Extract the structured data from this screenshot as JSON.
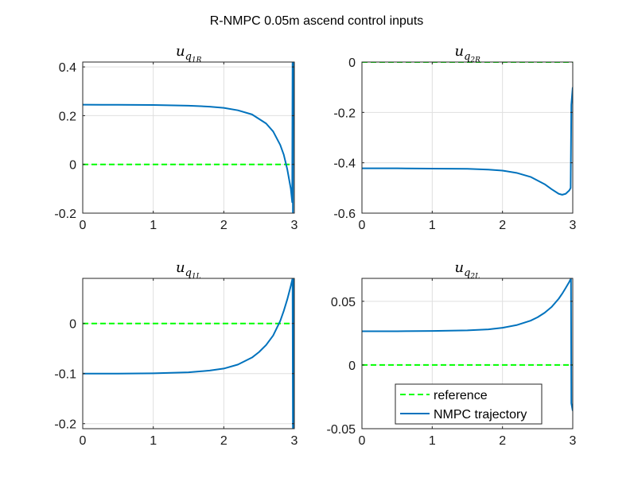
{
  "figure": {
    "title": "R-NMPC 0.05m ascend control inputs"
  },
  "colors": {
    "reference": "#00ff00",
    "trajectory": "#0072bd",
    "grid": "#dfdfdf",
    "axis": "#262626"
  },
  "legend": {
    "items": [
      "reference",
      "NMPC trajectory"
    ],
    "placement": "bottom-right of lower-right plot"
  },
  "chart_data": [
    {
      "type": "line",
      "title": {
        "base": "u",
        "sub": "q",
        "subsub": "1R"
      },
      "xlim": [
        0,
        3
      ],
      "ylim": [
        -0.2,
        0.42
      ],
      "xticks": [
        0,
        1,
        2,
        3
      ],
      "xtick_labels": [
        "0",
        "1",
        "2",
        "3"
      ],
      "yticks": [
        -0.2,
        0,
        0.2,
        0.4
      ],
      "ytick_labels": [
        "-0.2",
        "0",
        "0.2",
        "0.4"
      ],
      "grid": true,
      "series": [
        {
          "name": "reference",
          "style": "dashed",
          "x": [
            0,
            3
          ],
          "y": [
            0,
            0
          ]
        },
        {
          "name": "NMPC trajectory",
          "style": "solid",
          "x": [
            0,
            0.5,
            1.0,
            1.5,
            1.8,
            2.0,
            2.2,
            2.4,
            2.6,
            2.7,
            2.8,
            2.85,
            2.9,
            2.95,
            2.97,
            2.975,
            2.98,
            2.985,
            3.0
          ],
          "y": [
            0.245,
            0.2445,
            0.244,
            0.241,
            0.237,
            0.232,
            0.222,
            0.205,
            0.168,
            0.135,
            0.08,
            0.04,
            -0.02,
            -0.1,
            -0.155,
            0.42,
            -0.2,
            0.42,
            0.42
          ]
        }
      ]
    },
    {
      "type": "line",
      "title": {
        "base": "u",
        "sub": "q",
        "subsub": "2R"
      },
      "xlim": [
        0,
        3
      ],
      "ylim": [
        -0.6,
        0
      ],
      "xticks": [
        0,
        1,
        2,
        3
      ],
      "xtick_labels": [
        "0",
        "1",
        "2",
        "3"
      ],
      "yticks": [
        -0.6,
        -0.4,
        -0.2,
        0
      ],
      "ytick_labels": [
        "-0.6",
        "-0.4",
        "-0.2",
        "0"
      ],
      "grid": true,
      "series": [
        {
          "name": "reference",
          "style": "dashed",
          "x": [
            0,
            3
          ],
          "y": [
            0,
            0
          ]
        },
        {
          "name": "NMPC trajectory",
          "style": "solid",
          "x": [
            0,
            0.5,
            1.0,
            1.5,
            1.8,
            2.0,
            2.2,
            2.4,
            2.6,
            2.7,
            2.8,
            2.85,
            2.9,
            2.95,
            2.97,
            2.98,
            3.0
          ],
          "y": [
            -0.422,
            -0.422,
            -0.423,
            -0.424,
            -0.427,
            -0.431,
            -0.44,
            -0.456,
            -0.485,
            -0.505,
            -0.523,
            -0.527,
            -0.523,
            -0.51,
            -0.5,
            -0.17,
            -0.1
          ]
        }
      ]
    },
    {
      "type": "line",
      "title": {
        "base": "u",
        "sub": "q",
        "subsub": "1L"
      },
      "xlim": [
        0,
        3
      ],
      "ylim": [
        -0.21,
        0.09
      ],
      "xticks": [
        0,
        1,
        2,
        3
      ],
      "xtick_labels": [
        "0",
        "1",
        "2",
        "3"
      ],
      "yticks": [
        -0.2,
        -0.1,
        0
      ],
      "ytick_labels": [
        "-0.2",
        "-0.1",
        "0"
      ],
      "grid": true,
      "series": [
        {
          "name": "reference",
          "style": "dashed",
          "x": [
            0,
            3
          ],
          "y": [
            0,
            0
          ]
        },
        {
          "name": "NMPC trajectory",
          "style": "solid",
          "x": [
            0,
            0.5,
            1.0,
            1.5,
            1.8,
            2.0,
            2.2,
            2.4,
            2.5,
            2.6,
            2.7,
            2.8,
            2.85,
            2.9,
            2.95,
            2.975,
            2.98,
            2.985,
            3.0
          ],
          "y": [
            -0.1,
            -0.1,
            -0.0995,
            -0.0975,
            -0.094,
            -0.09,
            -0.082,
            -0.068,
            -0.057,
            -0.043,
            -0.024,
            0.005,
            0.025,
            0.048,
            0.075,
            0.09,
            -0.21,
            0.09,
            -0.21
          ]
        }
      ]
    },
    {
      "type": "line",
      "title": {
        "base": "u",
        "sub": "q",
        "subsub": "2L"
      },
      "xlim": [
        0,
        3
      ],
      "ylim": [
        -0.05,
        0.068
      ],
      "xticks": [
        0,
        1,
        2,
        3
      ],
      "xtick_labels": [
        "0",
        "1",
        "2",
        "3"
      ],
      "yticks": [
        -0.05,
        0,
        0.05
      ],
      "ytick_labels": [
        "-0.05",
        "0",
        "0.05"
      ],
      "grid": true,
      "series": [
        {
          "name": "reference",
          "style": "dashed",
          "x": [
            0,
            3
          ],
          "y": [
            0,
            0
          ]
        },
        {
          "name": "NMPC trajectory",
          "style": "solid",
          "x": [
            0,
            0.5,
            1.0,
            1.5,
            1.8,
            2.0,
            2.2,
            2.4,
            2.5,
            2.6,
            2.7,
            2.8,
            2.85,
            2.9,
            2.95,
            2.975,
            2.98,
            3.0
          ],
          "y": [
            0.0265,
            0.0265,
            0.0267,
            0.0272,
            0.028,
            0.0292,
            0.0313,
            0.0348,
            0.0375,
            0.041,
            0.0456,
            0.052,
            0.056,
            0.0605,
            0.0652,
            0.068,
            -0.03,
            -0.036
          ]
        }
      ]
    }
  ]
}
